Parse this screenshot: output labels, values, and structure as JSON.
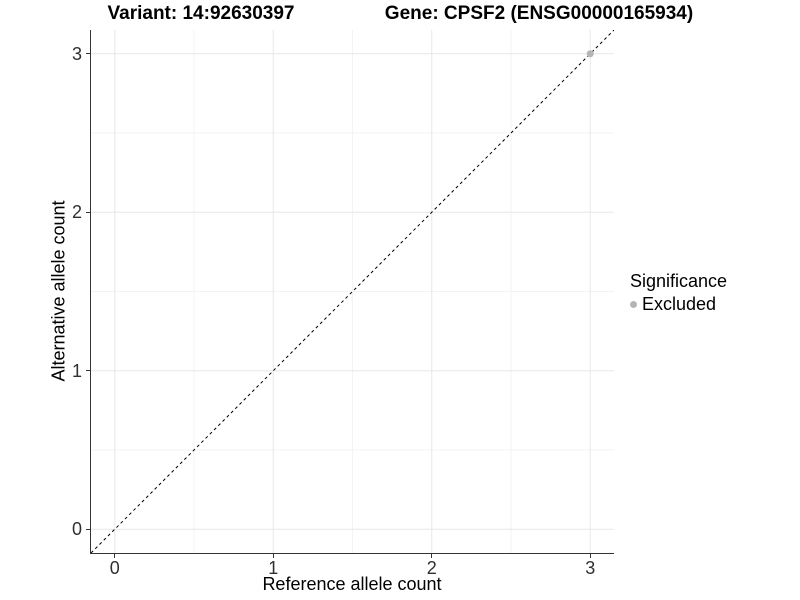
{
  "chart_data": {
    "type": "scatter",
    "title_left": "Variant: 14:92630397",
    "title_right": "Gene: CPSF2 (ENSG00000165934)",
    "xlabel": "Reference allele count",
    "ylabel": "Alternative allele count",
    "xlim": [
      -0.15,
      3.15
    ],
    "ylim": [
      -0.15,
      3.15
    ],
    "x_ticks": [
      0,
      1,
      2,
      3
    ],
    "y_ticks": [
      0,
      1,
      2,
      3
    ],
    "minor_ticks": [
      0.5,
      1.5,
      2.5
    ],
    "grid": true,
    "colors": {
      "grid_major": "#e7e7e7",
      "grid_minor": "#f3f3f3",
      "axis": "#333333",
      "identity_line": "#000000",
      "point": "#b5b5b5"
    },
    "identity_line": {
      "style": "dashed",
      "from": [
        -0.15,
        -0.15
      ],
      "to": [
        3.15,
        3.15
      ]
    },
    "series": [
      {
        "name": "Excluded",
        "color": "#b5b5b5",
        "points": [
          {
            "x": 3,
            "y": 3
          }
        ]
      }
    ],
    "legend": {
      "title": "Significance",
      "position": "right",
      "items": [
        {
          "label": "Excluded",
          "color": "#b5b5b5"
        }
      ]
    }
  }
}
